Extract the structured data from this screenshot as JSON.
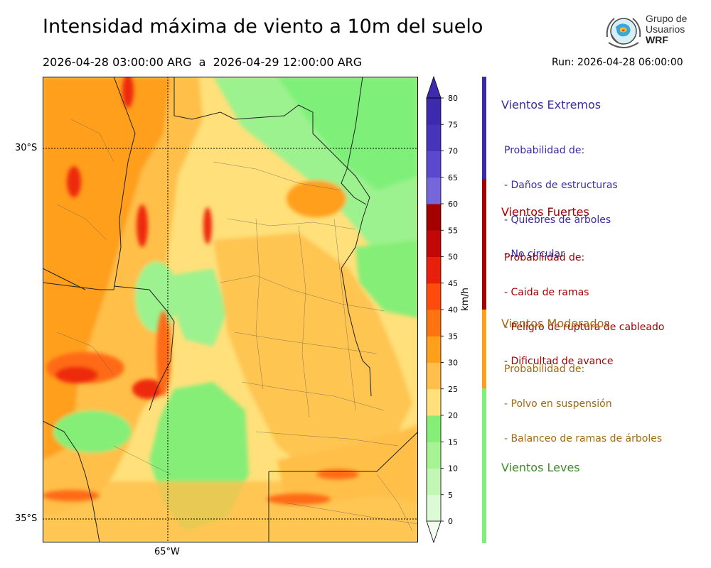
{
  "header": {
    "title": "Intensidad máxima de viento a 10m del suelo",
    "period": "2026-04-28 03:00:00 ARG  a  2026-04-29 12:00:00 ARG",
    "run": "Run: 2026-04-28 06:00:00"
  },
  "logo": {
    "line1": "Grupo de",
    "line2": "Usuarios",
    "line3": "WRF",
    "icon": "globe-icon"
  },
  "map": {
    "lat_labels": [
      "30°S",
      "35°S"
    ],
    "lon_labels": [
      "65°W"
    ],
    "grid": "dotted",
    "fill_colors": {
      "green": "#7ef07a",
      "lightgreen": "#9cf28e",
      "yellow": "#ffe07a",
      "lightorange": "#ffbf4a",
      "orange": "#ff9f1a",
      "redorange": "#ff6a12",
      "red": "#ee2a0e"
    }
  },
  "colorbar": {
    "unit": "km/h",
    "ticks": [
      "0",
      "5",
      "10",
      "15",
      "20",
      "25",
      "30",
      "35",
      "40",
      "45",
      "50",
      "55",
      "60",
      "65",
      "70",
      "75",
      "80"
    ],
    "levels": [
      0,
      5,
      10,
      15,
      20,
      25,
      30,
      35,
      40,
      45,
      50,
      55,
      60,
      65,
      70,
      75,
      80
    ],
    "colors": [
      "#f2fdef",
      "#dcfad5",
      "#c2f6b4",
      "#a7f293",
      "#85ee77",
      "#ffe07a",
      "#ffbf4a",
      "#ff9f1a",
      "#ff7410",
      "#ff4b0c",
      "#e8200b",
      "#c20807",
      "#a30000",
      "#7566dc",
      "#5a48cf",
      "#4634bc",
      "#3e2aae"
    ],
    "extend": "both"
  },
  "legend": {
    "categories": [
      {
        "title": "Vientos Extremos",
        "intro": "Probabilidad de:",
        "items": [
          "- Daños de estructuras",
          "- Quiebres de árboles",
          "- No circular"
        ],
        "color": "#3a2aa8",
        "bar_color": "#3a2aa8"
      },
      {
        "title": "Vientos Fuertes",
        "intro": "Probabilidad de:",
        "items": [
          "- Caida de ramas",
          "- Peligro de ruptura de cableado",
          "- Dificultad de avance"
        ],
        "color": "#a30000",
        "bar_color": "#a30000"
      },
      {
        "title": "Vientos Moderados",
        "intro": "Probabilidad de:",
        "items": [
          "- Polvo en suspensión",
          "- Balanceo de ramas de árboles"
        ],
        "color": "#a06a10",
        "bar_color": "#ff9f1a"
      },
      {
        "title": "Vientos Leves",
        "intro": "",
        "items": [],
        "color": "#3d8a2a",
        "bar_color": "#7ef07a"
      }
    ]
  }
}
